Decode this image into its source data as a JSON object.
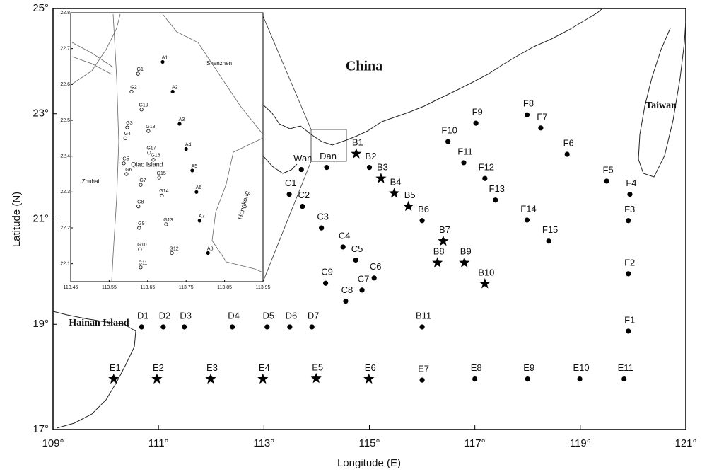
{
  "chart_data": {
    "type": "map",
    "xlabel": "Longitude (E)",
    "ylabel": "Latitude (N)",
    "xlim": [
      109,
      121
    ],
    "ylim": [
      17,
      25
    ],
    "xticks": [
      {
        "value": 109,
        "label": "109°"
      },
      {
        "value": 111,
        "label": "111°"
      },
      {
        "value": 113,
        "label": "113°"
      },
      {
        "value": 115,
        "label": "115°"
      },
      {
        "value": 117,
        "label": "117°"
      },
      {
        "value": 119,
        "label": "119°"
      },
      {
        "value": 121,
        "label": "121°"
      }
    ],
    "yticks": [
      {
        "value": 17,
        "label": "17°"
      },
      {
        "value": 19,
        "label": "19°"
      },
      {
        "value": 21,
        "label": "21°"
      },
      {
        "value": 23,
        "label": "23°"
      },
      {
        "value": 25,
        "label": "25°"
      }
    ],
    "places": [
      "China",
      "Taiwan",
      "Hainan Island"
    ],
    "stations": [
      {
        "name": "B1",
        "x": 114.75,
        "y": 22.24,
        "marker": "star"
      },
      {
        "name": "B2",
        "x": 115.0,
        "y": 21.98,
        "marker": "dot"
      },
      {
        "name": "B3",
        "x": 115.22,
        "y": 21.77,
        "marker": "star"
      },
      {
        "name": "B4",
        "x": 115.47,
        "y": 21.49,
        "marker": "star"
      },
      {
        "name": "B5",
        "x": 115.74,
        "y": 21.24,
        "marker": "star"
      },
      {
        "name": "B6",
        "x": 116.0,
        "y": 20.97,
        "marker": "dot"
      },
      {
        "name": "B7",
        "x": 116.4,
        "y": 20.58,
        "marker": "star"
      },
      {
        "name": "B8",
        "x": 116.29,
        "y": 20.17,
        "marker": "star"
      },
      {
        "name": "B9",
        "x": 116.8,
        "y": 20.17,
        "marker": "star"
      },
      {
        "name": "B10",
        "x": 117.19,
        "y": 19.77,
        "marker": "star"
      },
      {
        "name": "B11",
        "x": 116.0,
        "y": 18.95,
        "marker": "dot"
      },
      {
        "name": "C1",
        "x": 113.48,
        "y": 21.47,
        "marker": "dot"
      },
      {
        "name": "C2",
        "x": 113.73,
        "y": 21.24,
        "marker": "dot"
      },
      {
        "name": "C3",
        "x": 114.09,
        "y": 20.83,
        "marker": "dot"
      },
      {
        "name": "C4",
        "x": 114.5,
        "y": 20.47,
        "marker": "dot"
      },
      {
        "name": "C5",
        "x": 114.74,
        "y": 20.22,
        "marker": "dot"
      },
      {
        "name": "C6",
        "x": 115.09,
        "y": 19.88,
        "marker": "dot"
      },
      {
        "name": "C7",
        "x": 114.86,
        "y": 19.65,
        "marker": "dot"
      },
      {
        "name": "C8",
        "x": 114.55,
        "y": 19.44,
        "marker": "dot"
      },
      {
        "name": "C9",
        "x": 114.17,
        "y": 19.78,
        "marker": "dot"
      },
      {
        "name": "D1",
        "x": 110.68,
        "y": 18.95,
        "marker": "dot"
      },
      {
        "name": "D2",
        "x": 111.09,
        "y": 18.95,
        "marker": "dot"
      },
      {
        "name": "D3",
        "x": 111.49,
        "y": 18.95,
        "marker": "dot"
      },
      {
        "name": "D4",
        "x": 112.4,
        "y": 18.95,
        "marker": "dot"
      },
      {
        "name": "D5",
        "x": 113.06,
        "y": 18.95,
        "marker": "dot"
      },
      {
        "name": "D6",
        "x": 113.49,
        "y": 18.95,
        "marker": "dot"
      },
      {
        "name": "D7",
        "x": 113.91,
        "y": 18.95,
        "marker": "dot"
      },
      {
        "name": "E1",
        "x": 110.15,
        "y": 17.96,
        "marker": "star"
      },
      {
        "name": "E2",
        "x": 110.97,
        "y": 17.96,
        "marker": "star"
      },
      {
        "name": "E3",
        "x": 111.99,
        "y": 17.96,
        "marker": "star"
      },
      {
        "name": "E4",
        "x": 112.98,
        "y": 17.96,
        "marker": "star"
      },
      {
        "name": "E5",
        "x": 113.99,
        "y": 17.97,
        "marker": "star"
      },
      {
        "name": "E6",
        "x": 114.99,
        "y": 17.96,
        "marker": "star"
      },
      {
        "name": "E7",
        "x": 116.0,
        "y": 17.94,
        "marker": "dot"
      },
      {
        "name": "E8",
        "x": 117.0,
        "y": 17.96,
        "marker": "dot"
      },
      {
        "name": "E9",
        "x": 118.0,
        "y": 17.96,
        "marker": "dot"
      },
      {
        "name": "E10",
        "x": 118.99,
        "y": 17.96,
        "marker": "dot"
      },
      {
        "name": "E11",
        "x": 119.83,
        "y": 17.96,
        "marker": "dot"
      },
      {
        "name": "F1",
        "x": 119.91,
        "y": 18.87,
        "marker": "dot"
      },
      {
        "name": "F2",
        "x": 119.91,
        "y": 19.96,
        "marker": "dot"
      },
      {
        "name": "F3",
        "x": 119.91,
        "y": 20.97,
        "marker": "dot"
      },
      {
        "name": "F4",
        "x": 119.94,
        "y": 21.47,
        "marker": "dot"
      },
      {
        "name": "F5",
        "x": 119.5,
        "y": 21.72,
        "marker": "dot"
      },
      {
        "name": "F6",
        "x": 118.75,
        "y": 22.23,
        "marker": "dot"
      },
      {
        "name": "F7",
        "x": 118.25,
        "y": 22.73,
        "marker": "dot"
      },
      {
        "name": "F8",
        "x": 117.99,
        "y": 22.98,
        "marker": "dot"
      },
      {
        "name": "F9",
        "x": 117.02,
        "y": 22.82,
        "marker": "dot"
      },
      {
        "name": "F10",
        "x": 116.49,
        "y": 22.47,
        "marker": "dot"
      },
      {
        "name": "F11",
        "x": 116.79,
        "y": 22.07,
        "marker": "dot"
      },
      {
        "name": "F12",
        "x": 117.19,
        "y": 21.77,
        "marker": "dot"
      },
      {
        "name": "F13",
        "x": 117.39,
        "y": 21.36,
        "marker": "dot"
      },
      {
        "name": "F14",
        "x": 117.99,
        "y": 20.98,
        "marker": "dot"
      },
      {
        "name": "F15",
        "x": 118.4,
        "y": 20.58,
        "marker": "dot"
      },
      {
        "name": "Wan",
        "x": 113.71,
        "y": 21.94,
        "marker": "dot"
      },
      {
        "name": "Dan",
        "x": 114.19,
        "y": 21.98,
        "marker": "dot"
      }
    ],
    "inset": {
      "xlim": [
        113.45,
        113.95
      ],
      "ylim": [
        22.05,
        22.8
      ],
      "xticks": [
        113.45,
        113.55,
        113.65,
        113.75,
        113.85,
        113.95
      ],
      "yticks": [
        22.1,
        22.2,
        22.3,
        22.4,
        22.5,
        22.6,
        22.7,
        22.8
      ],
      "places": [
        "Shenzhen",
        "Zhuhai",
        "Qiao Island",
        "Hongkong"
      ],
      "stations": [
        {
          "name": "A1",
          "x": 113.689,
          "y": 22.663,
          "marker": "dot"
        },
        {
          "name": "A2",
          "x": 113.715,
          "y": 22.58,
          "marker": "dot"
        },
        {
          "name": "A3",
          "x": 113.733,
          "y": 22.49,
          "marker": "dot"
        },
        {
          "name": "A4",
          "x": 113.75,
          "y": 22.42,
          "marker": "dot"
        },
        {
          "name": "A5",
          "x": 113.766,
          "y": 22.36,
          "marker": "dot"
        },
        {
          "name": "A6",
          "x": 113.777,
          "y": 22.3,
          "marker": "dot"
        },
        {
          "name": "A7",
          "x": 113.785,
          "y": 22.22,
          "marker": "dot"
        },
        {
          "name": "A8",
          "x": 113.807,
          "y": 22.13,
          "marker": "dot"
        },
        {
          "name": "G1",
          "x": 113.625,
          "y": 22.63,
          "marker": "ring"
        },
        {
          "name": "G2",
          "x": 113.608,
          "y": 22.58,
          "marker": "ring"
        },
        {
          "name": "G19",
          "x": 113.634,
          "y": 22.53,
          "marker": "ring"
        },
        {
          "name": "G3",
          "x": 113.597,
          "y": 22.48,
          "marker": "ring"
        },
        {
          "name": "G18",
          "x": 113.652,
          "y": 22.47,
          "marker": "ring"
        },
        {
          "name": "G4",
          "x": 113.592,
          "y": 22.45,
          "marker": "ring"
        },
        {
          "name": "G17",
          "x": 113.654,
          "y": 22.41,
          "marker": "ring"
        },
        {
          "name": "G5",
          "x": 113.588,
          "y": 22.38,
          "marker": "ring"
        },
        {
          "name": "G16",
          "x": 113.665,
          "y": 22.39,
          "marker": "ring"
        },
        {
          "name": "G6",
          "x": 113.595,
          "y": 22.35,
          "marker": "ring"
        },
        {
          "name": "G15",
          "x": 113.68,
          "y": 22.34,
          "marker": "ring"
        },
        {
          "name": "G7",
          "x": 113.632,
          "y": 22.32,
          "marker": "ring"
        },
        {
          "name": "G14",
          "x": 113.687,
          "y": 22.29,
          "marker": "ring"
        },
        {
          "name": "G8",
          "x": 113.626,
          "y": 22.26,
          "marker": "ring"
        },
        {
          "name": "G13",
          "x": 113.698,
          "y": 22.21,
          "marker": "ring"
        },
        {
          "name": "G9",
          "x": 113.628,
          "y": 22.2,
          "marker": "ring"
        },
        {
          "name": "G12",
          "x": 113.713,
          "y": 22.13,
          "marker": "ring"
        },
        {
          "name": "G10",
          "x": 113.63,
          "y": 22.14,
          "marker": "ring"
        },
        {
          "name": "G11",
          "x": 113.632,
          "y": 22.09,
          "marker": "ring"
        }
      ]
    }
  }
}
